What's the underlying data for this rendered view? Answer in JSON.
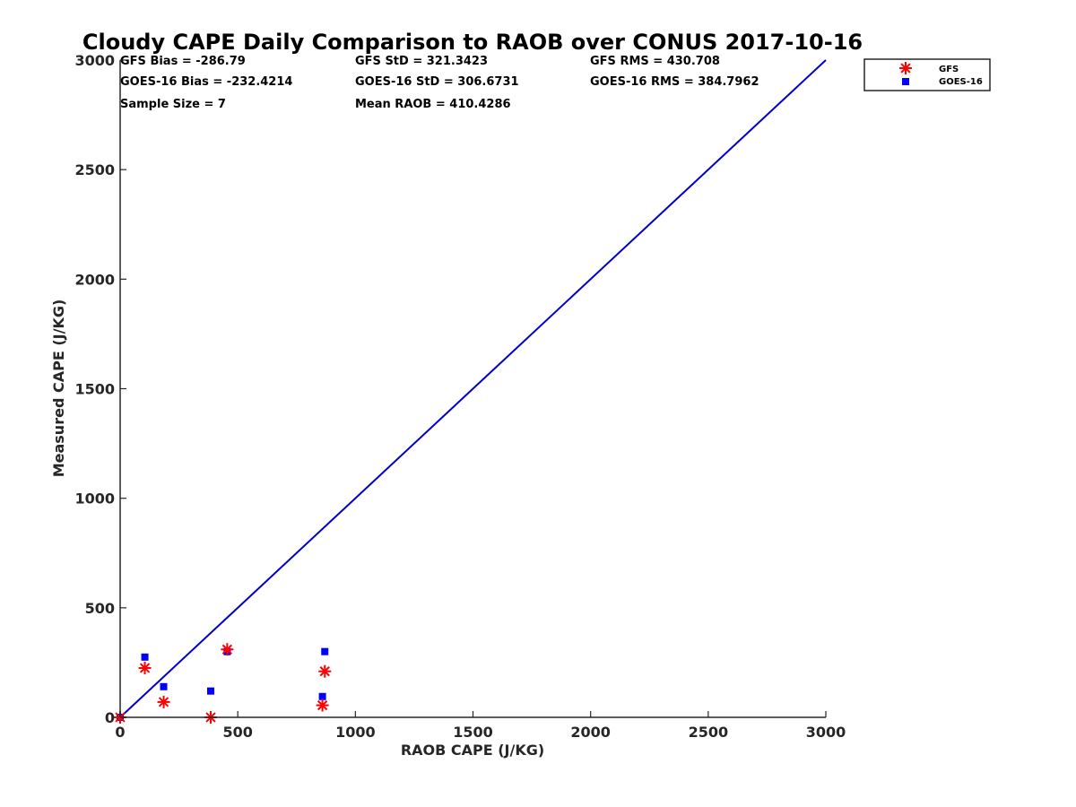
{
  "chart_data": {
    "type": "scatter",
    "title": "Cloudy CAPE Daily Comparison to RAOB over CONUS 2017-10-16",
    "xlabel": "RAOB CAPE (J/KG)",
    "ylabel": "Measured CAPE (J/KG)",
    "xlim": [
      0,
      3000
    ],
    "ylim": [
      0,
      3000
    ],
    "xticks": [
      "0",
      "500",
      "1000",
      "1500",
      "2000",
      "2500",
      "3000"
    ],
    "yticks": [
      "0",
      "500",
      "1000",
      "1500",
      "2000",
      "2500",
      "3000"
    ],
    "grid": false,
    "legend_position": "top-right outside",
    "stats": [
      [
        "GFS Bias = -286.79",
        "GFS StD = 321.3423",
        "GFS RMS = 430.708"
      ],
      [
        "GOES-16 Bias = -232.4214",
        "GOES-16 StD = 306.6731",
        "GOES-16 RMS = 384.7962"
      ],
      [
        "Sample Size = 7",
        "Mean RAOB = 410.4286",
        ""
      ]
    ],
    "reference_line": {
      "x": [
        0,
        3000
      ],
      "y": [
        0,
        3000
      ],
      "color": "#0000cc"
    },
    "series": [
      {
        "name": "GFS",
        "marker": "asterisk",
        "color": "#ff0000",
        "x": [
          0,
          105,
          185,
          385,
          455,
          860,
          870
        ],
        "y": [
          0,
          225,
          70,
          0,
          310,
          55,
          210
        ]
      },
      {
        "name": "GOES-16",
        "marker": "square",
        "color": "#0000ff",
        "x": [
          0,
          105,
          185,
          385,
          455,
          860,
          870
        ],
        "y": [
          0,
          275,
          140,
          120,
          300,
          95,
          300
        ]
      }
    ]
  }
}
